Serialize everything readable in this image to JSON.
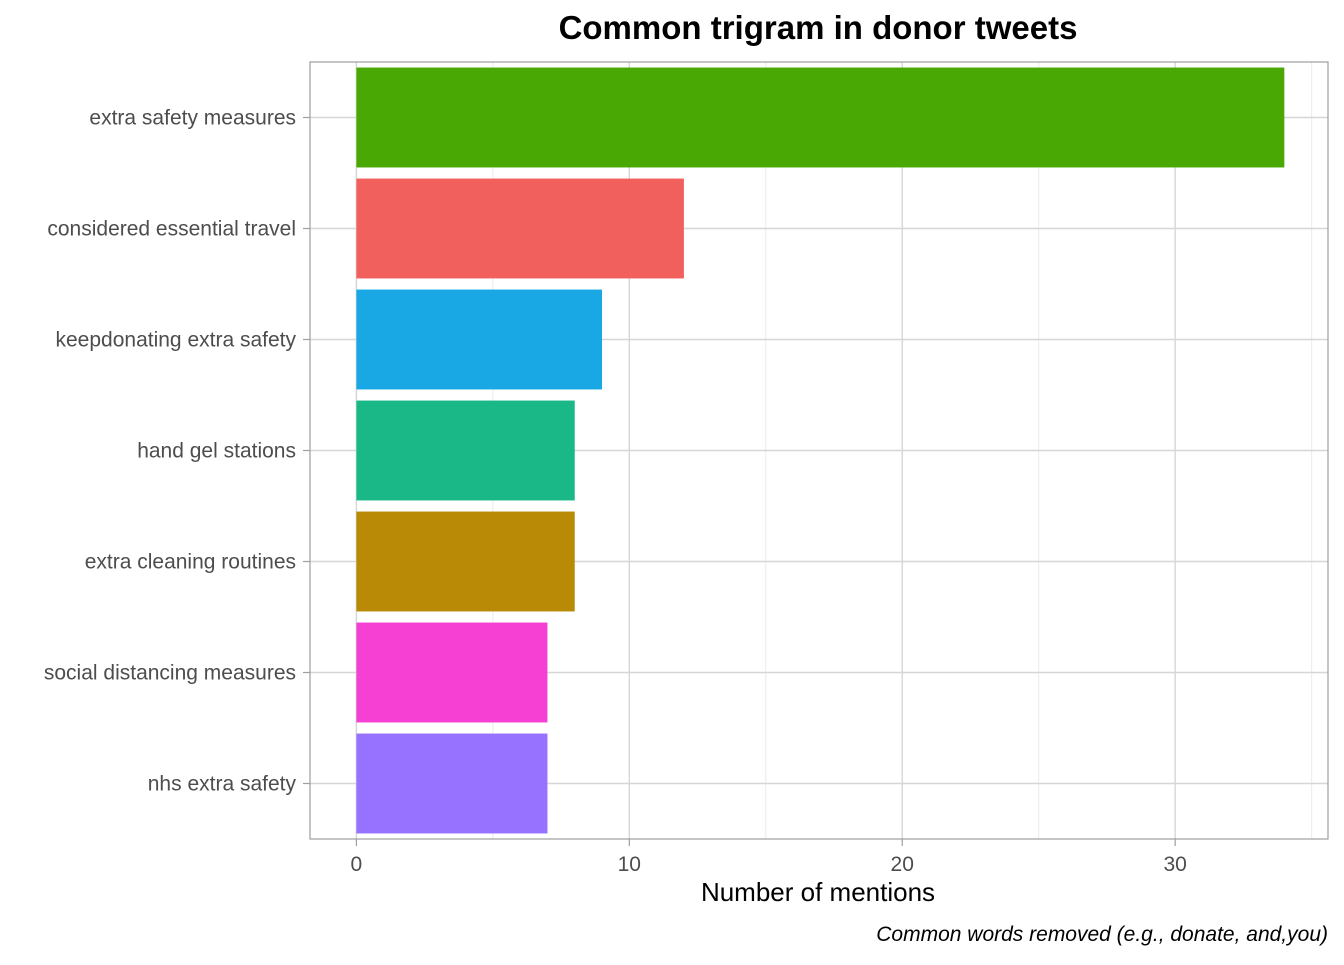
{
  "chart_data": {
    "type": "bar",
    "orientation": "horizontal",
    "title": "Common trigram in donor tweets",
    "xlabel": "Number of mentions",
    "ylabel": "",
    "caption": "Common words removed (e.g., donate, and,you)",
    "xlim": [
      -1.7,
      35.6
    ],
    "xticks": [
      0,
      10,
      20,
      30
    ],
    "grid": true,
    "legend": "none",
    "categories": [
      "extra safety measures",
      "considered essential travel",
      "keepdonating extra safety",
      "hand gel stations",
      "extra cleaning routines",
      "social distancing measures",
      "nhs extra safety"
    ],
    "values": [
      34,
      12,
      9,
      8,
      8,
      7,
      7
    ],
    "colors": [
      "#49A804",
      "#F2605E",
      "#19A8E4",
      "#1AB886",
      "#B88A06",
      "#F640D4",
      "#9771FF"
    ]
  }
}
